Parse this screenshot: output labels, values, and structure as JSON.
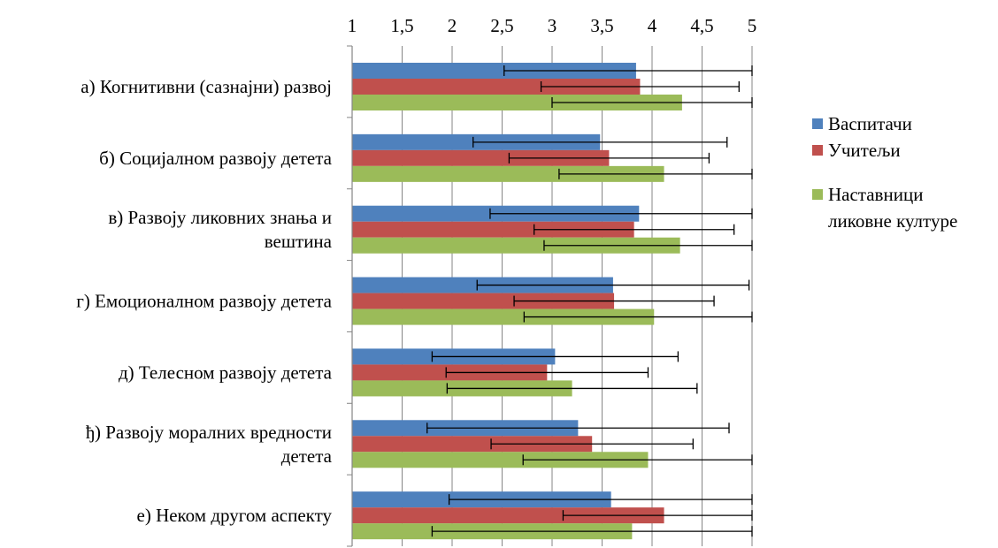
{
  "chart_data": {
    "type": "bar",
    "orientation": "horizontal",
    "xlim": [
      1,
      5
    ],
    "ticks": [
      1,
      1.5,
      2,
      2.5,
      3,
      3.5,
      4,
      4.5,
      5
    ],
    "tick_labels": [
      "1",
      "1,5",
      "2",
      "2,5",
      "3",
      "3,5",
      "4",
      "4,5",
      "5"
    ],
    "xaxis_position": "top",
    "grid": true,
    "legend_position": "right",
    "title": "",
    "xlabel": "",
    "ylabel": "",
    "categories": [
      [
        "а) Когнитивни (сазнајни) развој"
      ],
      [
        "б) Социјалном развоју детета"
      ],
      [
        "в) Развоју ликовних знања и",
        "вештина"
      ],
      [
        "г) Емоционалном развоју детета"
      ],
      [
        "д) Телесном развоју детета"
      ],
      [
        "ђ) Развоју моралних вредности",
        "детета"
      ],
      [
        "е) Неком другом аспекту"
      ]
    ],
    "series": [
      {
        "name": "Васпитачи",
        "color": "#4F81BD",
        "values": [
          3.84,
          3.48,
          3.87,
          3.61,
          3.03,
          3.26,
          3.59
        ],
        "error": [
          1.32,
          1.27,
          1.49,
          1.36,
          1.23,
          1.51,
          1.62
        ]
      },
      {
        "name": "Учитељи",
        "color": "#C0504D",
        "values": [
          3.88,
          3.57,
          3.82,
          3.62,
          2.95,
          3.4,
          4.12
        ],
        "error": [
          0.99,
          1.0,
          1.0,
          1.0,
          1.01,
          1.01,
          1.01
        ]
      },
      {
        "name": "Наставници\nликовне културе",
        "color": "#9BBB59",
        "values": [
          4.3,
          4.12,
          4.28,
          4.02,
          3.2,
          3.96,
          3.8
        ],
        "error": [
          1.3,
          1.05,
          1.36,
          1.3,
          1.25,
          1.25,
          2.0
        ]
      }
    ]
  }
}
